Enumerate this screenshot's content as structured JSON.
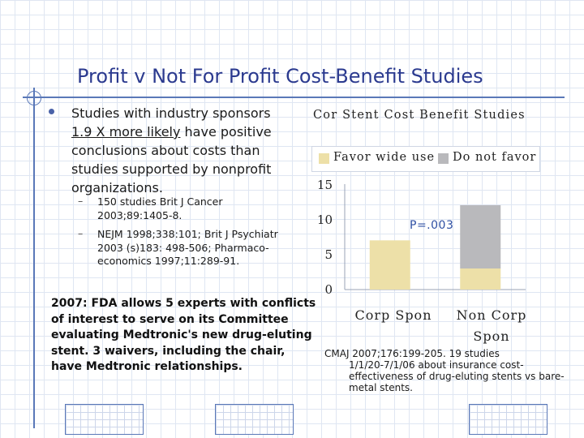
{
  "slide": {
    "title": "Profit v Not For Profit Cost-Benefit Studies",
    "bullet": {
      "before": "Studies with industry sponsors ",
      "underlined": "1.9 X more likely",
      "after": " have positive conclusions about costs than studies supported by nonprofit organizations."
    },
    "sub_bullets": [
      "150 studies  Brit J Cancer 2003;89:1405-8.",
      "NEJM 1998;338:101; Brit J Psychiatr 2003 (s)183: 498-506; Pharmaco-economics 1997;11:289-91."
    ],
    "fda_note": "2007: FDA allows 5 experts with conflicts of interest to serve on its Committee evaluating Medtronic's new drug-eluting stent. 3 waivers, including the chair, have Medtronic relationships.",
    "citation_line1": "CMAJ 2007;176:199-205. 19 studies",
    "citation_line2": "1/1/20-7/1/06 about insurance cost-effectiveness of drug-eluting stents vs bare-metal stents."
  },
  "chart_data": {
    "type": "bar",
    "stacked": true,
    "title": "Cor Stent Cost Benefit Studies",
    "categories": [
      "Corp Spon",
      "Non Corp Spon"
    ],
    "series": [
      {
        "name": "Favor wide use",
        "values": [
          7,
          3
        ],
        "color": "#ede0a8"
      },
      {
        "name": "Do not favor",
        "values": [
          0,
          9
        ],
        "color": "#b9b9bc"
      }
    ],
    "ylim": [
      0,
      15
    ],
    "yticks": [
      "0",
      "5",
      "10",
      "15"
    ],
    "legend_position": "top",
    "grid": false,
    "annotation": "P=.003",
    "axis_color": "#9aa3b5"
  }
}
